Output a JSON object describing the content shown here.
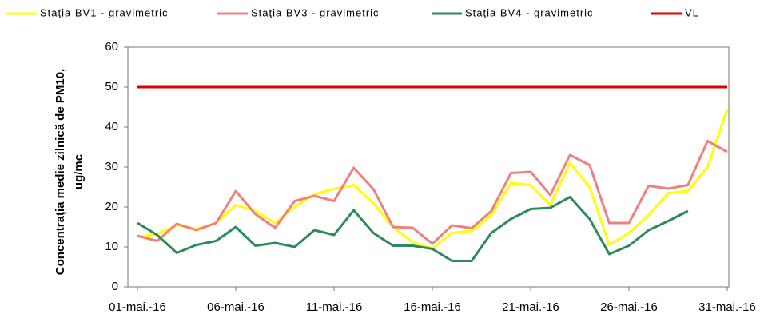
{
  "chart_data": {
    "type": "line",
    "ylabel": [
      "Concentraţia medie zilnică de PM10,",
      "ug/mc"
    ],
    "categories": [
      "01-mai.-16",
      null,
      null,
      null,
      null,
      "06-mai.-16",
      null,
      null,
      null,
      null,
      "11-mai.-16",
      null,
      null,
      null,
      null,
      "16-mai.-16",
      null,
      null,
      null,
      null,
      "21-mai.-16",
      null,
      null,
      null,
      null,
      "26-mai.-16",
      null,
      null,
      null,
      null,
      "31-mai.-16"
    ],
    "series": [
      {
        "name": "Staţia BV1 - gravimetric",
        "color": "#ffff00",
        "values": [
          12.5,
          13.2,
          15.5,
          14.5,
          16,
          20.5,
          19,
          16,
          20,
          23.2,
          24.5,
          25.5,
          21,
          15,
          11.2,
          9.6,
          13.5,
          14,
          18,
          26,
          25.5,
          20.5,
          31,
          25,
          10.5,
          13.5,
          18,
          23.5,
          24,
          30,
          44.5
        ]
      },
      {
        "name": "Staţia BV3 - gravimetric",
        "color": "#f08080",
        "values": [
          12.8,
          11.5,
          15.8,
          14.2,
          16,
          24,
          18.2,
          14.8,
          21.5,
          22.8,
          21.5,
          29.8,
          24.5,
          15,
          14.8,
          10.8,
          15.4,
          14.7,
          19,
          28.5,
          28.8,
          23,
          33,
          30.5,
          16,
          16,
          25.3,
          24.6,
          25.5,
          36.5,
          33.8
        ]
      },
      {
        "name": "Staţia BV4 - gravimetric",
        "color": "#2e8b57",
        "values": [
          16,
          13,
          8.5,
          10.5,
          11.5,
          15,
          10.3,
          11,
          10,
          14.2,
          13,
          19.2,
          13.5,
          10.3,
          10.3,
          9.5,
          6.5,
          6.5,
          13.5,
          17,
          19.5,
          19.8,
          22.5,
          17,
          8.2,
          10.3,
          14.2,
          16.5,
          19,
          null,
          null
        ]
      },
      {
        "name": "VL",
        "color": "#e00000",
        "values": [
          50,
          50,
          50,
          50,
          50,
          50,
          50,
          50,
          50,
          50,
          50,
          50,
          50,
          50,
          50,
          50,
          50,
          50,
          50,
          50,
          50,
          50,
          50,
          50,
          50,
          50,
          50,
          50,
          50,
          50,
          50
        ]
      }
    ],
    "ylim": [
      0,
      60
    ],
    "yticks": [
      0,
      10,
      20,
      30,
      40,
      50,
      60
    ],
    "grid": false
  }
}
